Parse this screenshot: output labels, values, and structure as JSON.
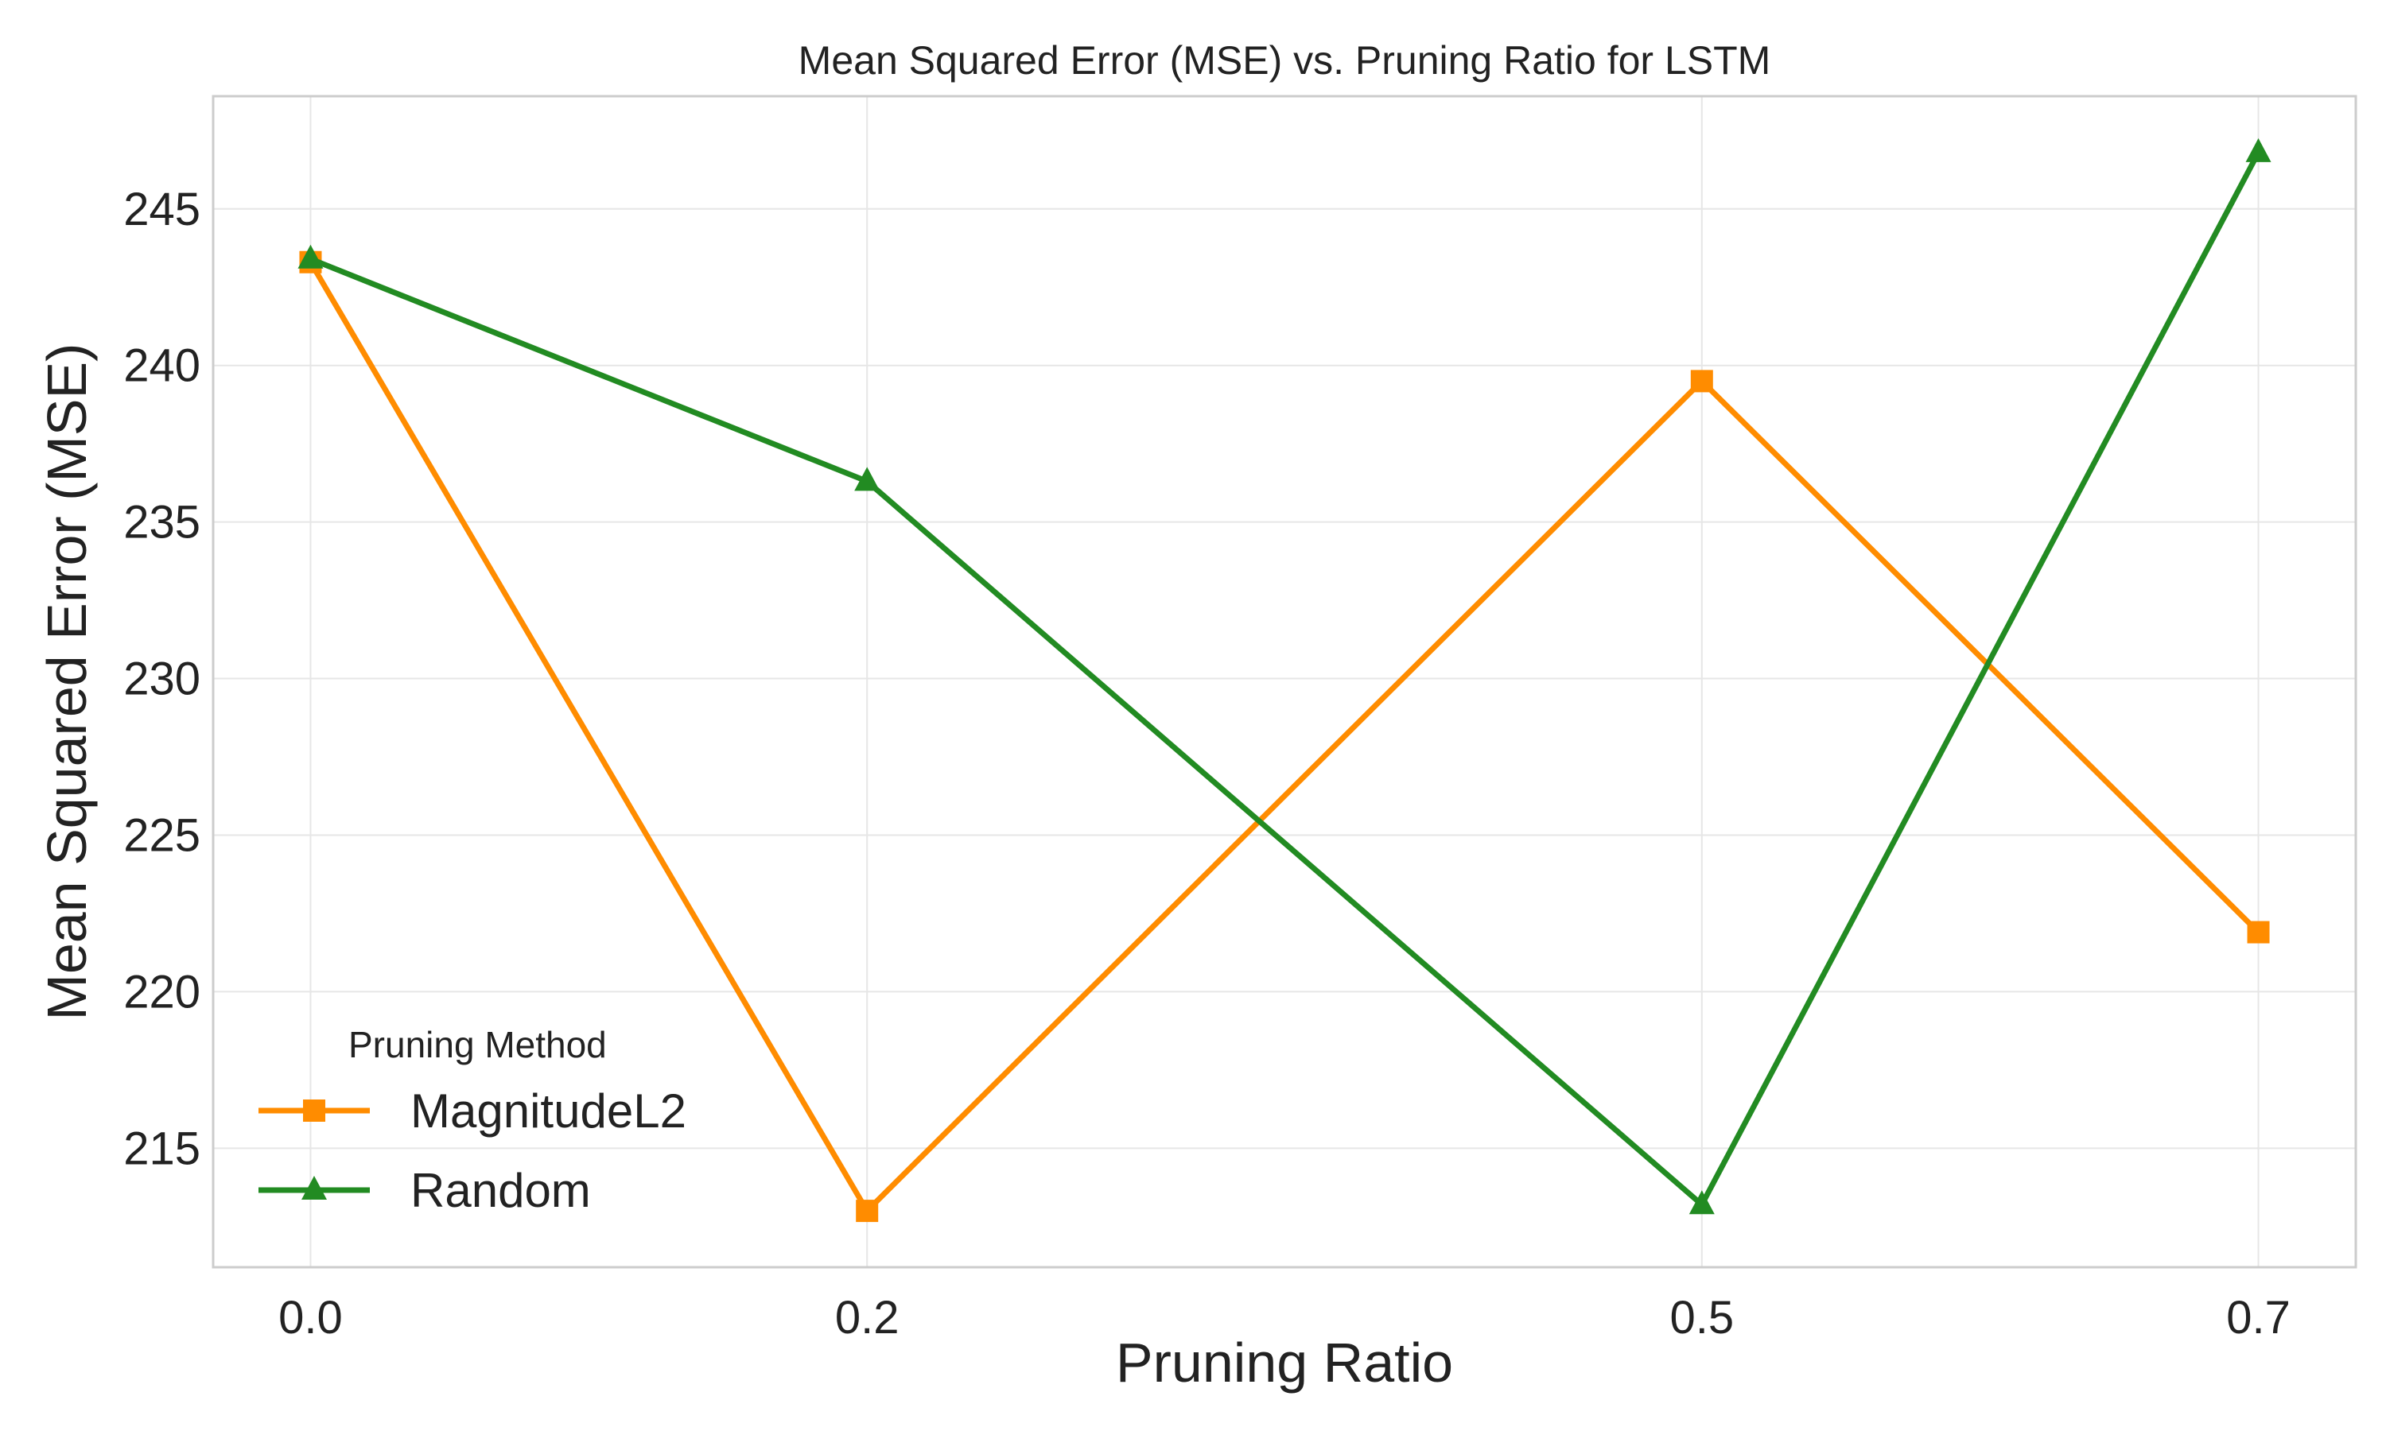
{
  "chart_data": {
    "type": "line",
    "title": "Mean Squared Error (MSE) vs. Pruning Ratio for LSTM",
    "xlabel": "Pruning Ratio",
    "ylabel": "Mean Squared Error (MSE)",
    "x": [
      0.0,
      0.2,
      0.5,
      0.7
    ],
    "x_tick_labels": [
      "0.0",
      "0.2",
      "0.5",
      "0.7"
    ],
    "y_ticks": [
      215,
      220,
      225,
      230,
      235,
      240,
      245
    ],
    "xlim": [
      -0.035,
      0.735
    ],
    "ylim": [
      211.2,
      248.6
    ],
    "grid": true,
    "legend": {
      "title": "Pruning Method",
      "placement": "bottom-left"
    },
    "series": [
      {
        "name": "MagnitudeL2",
        "values": [
          243.3,
          213.0,
          239.5,
          221.9
        ],
        "color": "#ff8c00",
        "marker": "square"
      },
      {
        "name": "Random",
        "values": [
          243.4,
          236.3,
          213.2,
          246.8
        ],
        "color": "#228b22",
        "marker": "triangle"
      }
    ]
  }
}
